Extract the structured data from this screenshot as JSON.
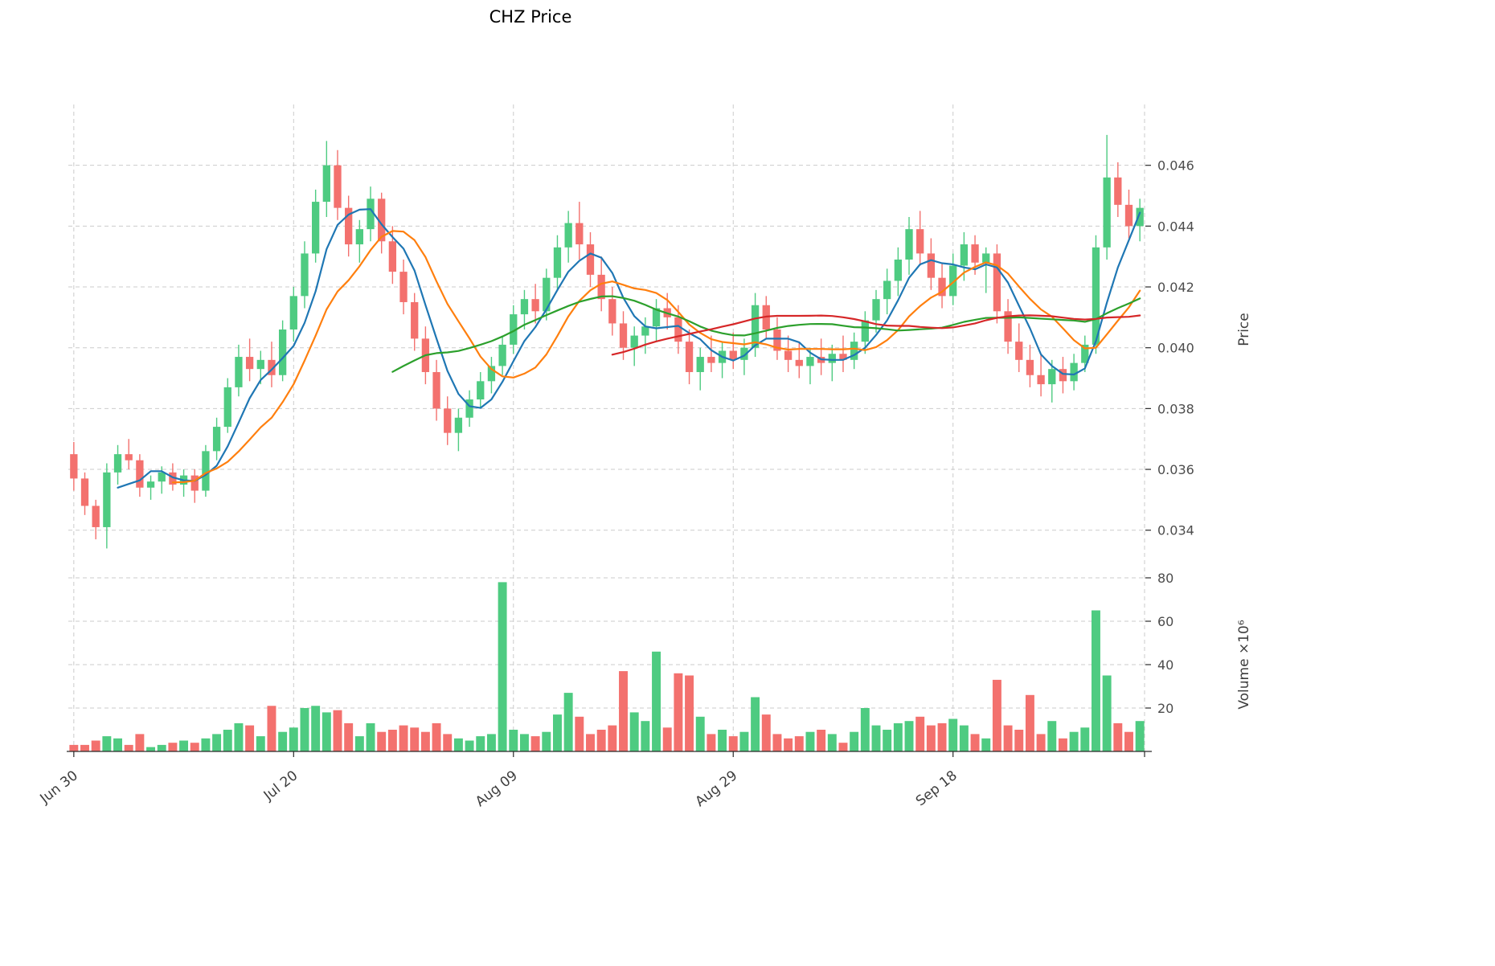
{
  "style": {
    "background": "#ffffff",
    "grid": "#cbcbcb",
    "axis_text": "#4c4c4c",
    "spine": "#2a2a2a"
  },
  "chart_data": {
    "type": "candlestick",
    "title": "CHZ Price",
    "price_axis": {
      "label": "Price",
      "ticks": [
        0.034,
        0.036,
        0.038,
        0.04,
        0.042,
        0.044,
        0.046
      ],
      "ylim": [
        0.0332,
        0.048
      ]
    },
    "volume_axis": {
      "label": "Volume ×10⁶",
      "ticks": [
        20,
        40,
        60,
        80
      ],
      "ylim": [
        0,
        80
      ],
      "unit": "millions"
    },
    "x_axis": {
      "tick_indices": [
        0,
        20,
        40,
        60,
        80
      ],
      "tick_labels": [
        "Jun 30",
        "Jul 20",
        "Aug 09",
        "Aug 29",
        "Sep 18"
      ]
    },
    "candle_colors": {
      "up": "#4ecb81",
      "down": "#f3716e"
    },
    "moving_averages": [
      {
        "window": 5,
        "color": "#1f77b4"
      },
      {
        "window": 10,
        "color": "#ff7f0e"
      },
      {
        "window": 30,
        "color": "#2ca02c"
      },
      {
        "window": 50,
        "color": "#d62728"
      }
    ],
    "dates": [
      "Jun 30",
      "Jul 01",
      "Jul 02",
      "Jul 03",
      "Jul 04",
      "Jul 05",
      "Jul 06",
      "Jul 07",
      "Jul 08",
      "Jul 09",
      "Jul 10",
      "Jul 11",
      "Jul 12",
      "Jul 13",
      "Jul 14",
      "Jul 15",
      "Jul 16",
      "Jul 17",
      "Jul 18",
      "Jul 19",
      "Jul 20",
      "Jul 21",
      "Jul 22",
      "Jul 23",
      "Jul 24",
      "Jul 25",
      "Jul 26",
      "Jul 27",
      "Jul 28",
      "Jul 29",
      "Jul 30",
      "Jul 31",
      "Aug 01",
      "Aug 02",
      "Aug 03",
      "Aug 04",
      "Aug 05",
      "Aug 06",
      "Aug 07",
      "Aug 08",
      "Aug 09",
      "Aug 10",
      "Aug 11",
      "Aug 12",
      "Aug 13",
      "Aug 14",
      "Aug 15",
      "Aug 16",
      "Aug 17",
      "Aug 18",
      "Aug 19",
      "Aug 20",
      "Aug 21",
      "Aug 22",
      "Aug 23",
      "Aug 24",
      "Aug 25",
      "Aug 26",
      "Aug 27",
      "Aug 28",
      "Aug 29",
      "Aug 30",
      "Aug 31",
      "Sep 01",
      "Sep 02",
      "Sep 03",
      "Sep 04",
      "Sep 05",
      "Sep 06",
      "Sep 07",
      "Sep 08",
      "Sep 09",
      "Sep 10",
      "Sep 11",
      "Sep 12",
      "Sep 13",
      "Sep 14",
      "Sep 15",
      "Sep 16",
      "Sep 17",
      "Sep 18",
      "Sep 19",
      "Sep 20",
      "Sep 21",
      "Sep 22",
      "Sep 23",
      "Sep 24",
      "Sep 25",
      "Sep 26",
      "Sep 27",
      "Sep 28",
      "Sep 29",
      "Sep 30",
      "Oct 01",
      "Oct 02",
      "Oct 03",
      "Oct 04",
      "Oct 05"
    ],
    "ohlc": [
      [
        0.0365,
        0.0369,
        0.0353,
        0.0357
      ],
      [
        0.0357,
        0.0359,
        0.0345,
        0.0348
      ],
      [
        0.0348,
        0.035,
        0.0337,
        0.0341
      ],
      [
        0.0341,
        0.0362,
        0.0334,
        0.0359
      ],
      [
        0.0359,
        0.0368,
        0.0355,
        0.0365
      ],
      [
        0.0365,
        0.037,
        0.036,
        0.0363
      ],
      [
        0.0363,
        0.0365,
        0.0351,
        0.0354
      ],
      [
        0.0354,
        0.0358,
        0.035,
        0.0356
      ],
      [
        0.0356,
        0.0361,
        0.0352,
        0.0359
      ],
      [
        0.0359,
        0.0362,
        0.0353,
        0.0355
      ],
      [
        0.0355,
        0.036,
        0.0351,
        0.0358
      ],
      [
        0.0358,
        0.036,
        0.0349,
        0.0353
      ],
      [
        0.0353,
        0.0368,
        0.0351,
        0.0366
      ],
      [
        0.0366,
        0.0377,
        0.0363,
        0.0374
      ],
      [
        0.0374,
        0.039,
        0.0372,
        0.0387
      ],
      [
        0.0387,
        0.0401,
        0.0384,
        0.0397
      ],
      [
        0.0397,
        0.0403,
        0.0389,
        0.0393
      ],
      [
        0.0393,
        0.0399,
        0.0388,
        0.0396
      ],
      [
        0.0396,
        0.0402,
        0.0387,
        0.0391
      ],
      [
        0.0391,
        0.0409,
        0.0389,
        0.0406
      ],
      [
        0.0406,
        0.042,
        0.0402,
        0.0417
      ],
      [
        0.0417,
        0.0435,
        0.0413,
        0.0431
      ],
      [
        0.0431,
        0.0452,
        0.0428,
        0.0448
      ],
      [
        0.0448,
        0.0468,
        0.0443,
        0.046
      ],
      [
        0.046,
        0.0465,
        0.0442,
        0.0446
      ],
      [
        0.0446,
        0.045,
        0.043,
        0.0434
      ],
      [
        0.0434,
        0.0442,
        0.0428,
        0.0439
      ],
      [
        0.0439,
        0.0453,
        0.0435,
        0.0449
      ],
      [
        0.0449,
        0.0451,
        0.0431,
        0.0435
      ],
      [
        0.0435,
        0.044,
        0.0421,
        0.0425
      ],
      [
        0.0425,
        0.0429,
        0.0411,
        0.0415
      ],
      [
        0.0415,
        0.0418,
        0.0399,
        0.0403
      ],
      [
        0.0403,
        0.0407,
        0.0388,
        0.0392
      ],
      [
        0.0392,
        0.0396,
        0.0376,
        0.038
      ],
      [
        0.038,
        0.0384,
        0.0368,
        0.0372
      ],
      [
        0.0372,
        0.038,
        0.0366,
        0.0377
      ],
      [
        0.0377,
        0.0386,
        0.0374,
        0.0383
      ],
      [
        0.0383,
        0.0392,
        0.038,
        0.0389
      ],
      [
        0.0389,
        0.0397,
        0.0385,
        0.0394
      ],
      [
        0.0394,
        0.0404,
        0.0391,
        0.0401
      ],
      [
        0.0401,
        0.0414,
        0.0398,
        0.0411
      ],
      [
        0.0411,
        0.0419,
        0.0406,
        0.0416
      ],
      [
        0.0416,
        0.0421,
        0.0408,
        0.0412
      ],
      [
        0.0412,
        0.0426,
        0.0409,
        0.0423
      ],
      [
        0.0423,
        0.0437,
        0.0419,
        0.0433
      ],
      [
        0.0433,
        0.0445,
        0.0428,
        0.0441
      ],
      [
        0.0441,
        0.0448,
        0.0429,
        0.0434
      ],
      [
        0.0434,
        0.0438,
        0.042,
        0.0424
      ],
      [
        0.0424,
        0.043,
        0.0412,
        0.0416
      ],
      [
        0.0416,
        0.042,
        0.0404,
        0.0408
      ],
      [
        0.0408,
        0.0412,
        0.0396,
        0.04
      ],
      [
        0.04,
        0.0407,
        0.0394,
        0.0404
      ],
      [
        0.0404,
        0.041,
        0.0398,
        0.0407
      ],
      [
        0.0407,
        0.0416,
        0.0402,
        0.0413
      ],
      [
        0.0413,
        0.0418,
        0.0406,
        0.041
      ],
      [
        0.041,
        0.0414,
        0.0398,
        0.0402
      ],
      [
        0.0402,
        0.0406,
        0.0388,
        0.0392
      ],
      [
        0.0392,
        0.04,
        0.0386,
        0.0397
      ],
      [
        0.0397,
        0.0404,
        0.0392,
        0.0395
      ],
      [
        0.0395,
        0.0402,
        0.039,
        0.0399
      ],
      [
        0.0399,
        0.0405,
        0.0393,
        0.0396
      ],
      [
        0.0396,
        0.0403,
        0.0391,
        0.04
      ],
      [
        0.04,
        0.0418,
        0.0397,
        0.0414
      ],
      [
        0.0414,
        0.0417,
        0.0403,
        0.0406
      ],
      [
        0.0406,
        0.041,
        0.0396,
        0.0399
      ],
      [
        0.0399,
        0.0404,
        0.0392,
        0.0396
      ],
      [
        0.0396,
        0.0402,
        0.039,
        0.0394
      ],
      [
        0.0394,
        0.04,
        0.0388,
        0.0397
      ],
      [
        0.0397,
        0.0403,
        0.0391,
        0.0395
      ],
      [
        0.0395,
        0.0401,
        0.0389,
        0.0398
      ],
      [
        0.0398,
        0.0404,
        0.0392,
        0.0396
      ],
      [
        0.0396,
        0.0405,
        0.0393,
        0.0402
      ],
      [
        0.0402,
        0.0412,
        0.0398,
        0.0409
      ],
      [
        0.0409,
        0.0419,
        0.0405,
        0.0416
      ],
      [
        0.0416,
        0.0426,
        0.0411,
        0.0422
      ],
      [
        0.0422,
        0.0433,
        0.0417,
        0.0429
      ],
      [
        0.0429,
        0.0443,
        0.0424,
        0.0439
      ],
      [
        0.0439,
        0.0445,
        0.0427,
        0.0431
      ],
      [
        0.0431,
        0.0436,
        0.0419,
        0.0423
      ],
      [
        0.0423,
        0.0428,
        0.0413,
        0.0417
      ],
      [
        0.0417,
        0.0431,
        0.0414,
        0.0427
      ],
      [
        0.0427,
        0.0438,
        0.0422,
        0.0434
      ],
      [
        0.0434,
        0.0437,
        0.0424,
        0.0428
      ],
      [
        0.0428,
        0.0433,
        0.0418,
        0.0431
      ],
      [
        0.0431,
        0.0434,
        0.0408,
        0.0412
      ],
      [
        0.0412,
        0.0416,
        0.0398,
        0.0402
      ],
      [
        0.0402,
        0.0408,
        0.0392,
        0.0396
      ],
      [
        0.0396,
        0.0401,
        0.0387,
        0.0391
      ],
      [
        0.0391,
        0.0398,
        0.0384,
        0.0388
      ],
      [
        0.0388,
        0.0396,
        0.0382,
        0.0393
      ],
      [
        0.0393,
        0.0397,
        0.0385,
        0.0389
      ],
      [
        0.0389,
        0.0398,
        0.0386,
        0.0395
      ],
      [
        0.0395,
        0.0404,
        0.0392,
        0.0401
      ],
      [
        0.0401,
        0.0437,
        0.0398,
        0.0433
      ],
      [
        0.0433,
        0.047,
        0.0429,
        0.0456
      ],
      [
        0.0456,
        0.0461,
        0.0443,
        0.0447
      ],
      [
        0.0447,
        0.0452,
        0.0436,
        0.044
      ],
      [
        0.044,
        0.0449,
        0.0435,
        0.0446
      ]
    ],
    "volume_millions": [
      3,
      3,
      5,
      7,
      6,
      3,
      8,
      2,
      3,
      4,
      5,
      4,
      6,
      8,
      10,
      13,
      12,
      7,
      21,
      9,
      11,
      20,
      21,
      18,
      19,
      13,
      7,
      13,
      9,
      10,
      12,
      11,
      9,
      13,
      8,
      6,
      5,
      7,
      8,
      78,
      10,
      8,
      7,
      9,
      17,
      27,
      16,
      8,
      10,
      12,
      37,
      18,
      14,
      46,
      11,
      36,
      35,
      16,
      8,
      10,
      7,
      9,
      25,
      17,
      8,
      6,
      7,
      9,
      10,
      8,
      4,
      9,
      20,
      12,
      10,
      13,
      14,
      16,
      12,
      13,
      15,
      12,
      8,
      6,
      33,
      12,
      10,
      26,
      8,
      14,
      6,
      9,
      11,
      65,
      35,
      13,
      9,
      14
    ]
  }
}
